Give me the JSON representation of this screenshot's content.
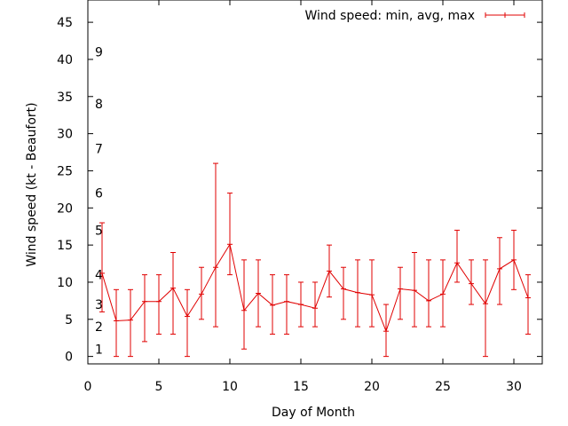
{
  "chart_data": {
    "type": "line",
    "title": "",
    "xlabel": "Day of Month",
    "ylabel": "Wind speed (kt - Beaufort)",
    "xlim": [
      0,
      32
    ],
    "ylim": [
      -1,
      48
    ],
    "grid": false,
    "legend_position": "top-right",
    "x_ticks": [
      0,
      5,
      10,
      15,
      20,
      25,
      30
    ],
    "y_ticks": [
      0,
      5,
      10,
      15,
      20,
      25,
      30,
      35,
      40,
      45
    ],
    "beaufort_labels": [
      {
        "label": "1",
        "y": 1
      },
      {
        "label": "2",
        "y": 4
      },
      {
        "label": "3",
        "y": 7
      },
      {
        "label": "4",
        "y": 11
      },
      {
        "label": "5",
        "y": 17
      },
      {
        "label": "6",
        "y": 22
      },
      {
        "label": "7",
        "y": 28
      },
      {
        "label": "8",
        "y": 34
      },
      {
        "label": "9",
        "y": 41
      }
    ],
    "series": [
      {
        "name": "Wind speed: min, avg, max",
        "color": "#e00000",
        "x": [
          1,
          2,
          3,
          4,
          5,
          6,
          7,
          8,
          9,
          10,
          11,
          12,
          13,
          14,
          15,
          16,
          17,
          18,
          19,
          20,
          21,
          22,
          23,
          24,
          25,
          26,
          27,
          28,
          29,
          30,
          31
        ],
        "avg": [
          11.2,
          4.8,
          4.9,
          7.4,
          7.4,
          9.2,
          5.4,
          8.4,
          12,
          15.1,
          6.2,
          8.5,
          6.9,
          7.4,
          7,
          6.5,
          11.5,
          9.1,
          8.6,
          8.3,
          3.4,
          9.1,
          8.9,
          7.5,
          8.4,
          12.6,
          9.8,
          7.1,
          11.8,
          13,
          7.9
        ],
        "min": [
          6,
          0,
          0,
          2,
          3,
          3,
          0,
          5,
          4,
          11,
          1,
          4,
          3,
          3,
          4,
          4,
          8,
          5,
          4,
          4,
          0,
          5,
          4,
          4,
          4,
          10,
          7,
          0,
          7,
          9,
          3
        ],
        "max": [
          18,
          9,
          9,
          11,
          11,
          14,
          9,
          12,
          26,
          22,
          13,
          13,
          11,
          11,
          10,
          10,
          15,
          12,
          13,
          13,
          7,
          12,
          14,
          13,
          13,
          17,
          13,
          13,
          16,
          17,
          11
        ]
      }
    ]
  }
}
